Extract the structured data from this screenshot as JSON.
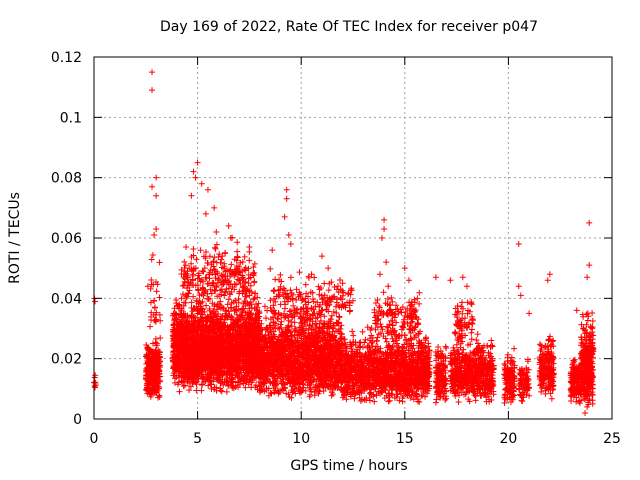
{
  "chart_data": {
    "type": "scatter",
    "title": "Day 169 of 2022, Rate Of TEC Index for receiver p047",
    "xlabel": "GPS time / hours",
    "ylabel": "ROTI / TECUs",
    "xlim": [
      0,
      25
    ],
    "ylim": [
      0,
      0.12
    ],
    "xticks": [
      0,
      5,
      10,
      15,
      20,
      25
    ],
    "yticks": [
      0,
      0.02,
      0.04,
      0.06,
      0.08,
      0.1,
      0.12
    ],
    "xtick_labels": [
      "0",
      "5",
      "10",
      "15",
      "20",
      "25"
    ],
    "ytick_labels": [
      "0",
      "0.02",
      "0.04",
      "0.06",
      "0.08",
      "0.1",
      "0.12"
    ],
    "grid": true,
    "marker": "+",
    "series_color": "#ff0000",
    "outliers": [
      {
        "x": 0.02,
        "y": 0.04
      },
      {
        "x": 0.05,
        "y": 0.039
      },
      {
        "x": 2.8,
        "y": 0.115
      },
      {
        "x": 2.8,
        "y": 0.109
      },
      {
        "x": 2.8,
        "y": 0.077
      },
      {
        "x": 3.0,
        "y": 0.08
      },
      {
        "x": 3.0,
        "y": 0.074
      },
      {
        "x": 3.0,
        "y": 0.063
      },
      {
        "x": 2.9,
        "y": 0.061
      },
      {
        "x": 2.6,
        "y": 0.044
      },
      {
        "x": 4.8,
        "y": 0.082
      },
      {
        "x": 5.0,
        "y": 0.085
      },
      {
        "x": 4.9,
        "y": 0.08
      },
      {
        "x": 5.2,
        "y": 0.078
      },
      {
        "x": 4.7,
        "y": 0.074
      },
      {
        "x": 5.5,
        "y": 0.076
      },
      {
        "x": 5.8,
        "y": 0.07
      },
      {
        "x": 5.4,
        "y": 0.068
      },
      {
        "x": 6.5,
        "y": 0.064
      },
      {
        "x": 5.9,
        "y": 0.062
      },
      {
        "x": 7.5,
        "y": 0.057
      },
      {
        "x": 6.6,
        "y": 0.06
      },
      {
        "x": 9.3,
        "y": 0.076
      },
      {
        "x": 9.3,
        "y": 0.073
      },
      {
        "x": 9.2,
        "y": 0.067
      },
      {
        "x": 9.4,
        "y": 0.061
      },
      {
        "x": 9.5,
        "y": 0.058
      },
      {
        "x": 8.6,
        "y": 0.056
      },
      {
        "x": 11.0,
        "y": 0.054
      },
      {
        "x": 11.3,
        "y": 0.05
      },
      {
        "x": 10.5,
        "y": 0.048
      },
      {
        "x": 12.0,
        "y": 0.045
      },
      {
        "x": 14.0,
        "y": 0.066
      },
      {
        "x": 14.0,
        "y": 0.063
      },
      {
        "x": 13.9,
        "y": 0.06
      },
      {
        "x": 14.1,
        "y": 0.052
      },
      {
        "x": 13.8,
        "y": 0.048
      },
      {
        "x": 14.2,
        "y": 0.044
      },
      {
        "x": 15.0,
        "y": 0.05
      },
      {
        "x": 15.2,
        "y": 0.046
      },
      {
        "x": 16.5,
        "y": 0.047
      },
      {
        "x": 17.2,
        "y": 0.046
      },
      {
        "x": 17.8,
        "y": 0.047
      },
      {
        "x": 18.0,
        "y": 0.044
      },
      {
        "x": 20.5,
        "y": 0.058
      },
      {
        "x": 20.5,
        "y": 0.044
      },
      {
        "x": 20.6,
        "y": 0.041
      },
      {
        "x": 22.0,
        "y": 0.048
      },
      {
        "x": 21.9,
        "y": 0.046
      },
      {
        "x": 23.9,
        "y": 0.065
      },
      {
        "x": 23.9,
        "y": 0.051
      },
      {
        "x": 23.8,
        "y": 0.047
      },
      {
        "x": 21.0,
        "y": 0.035
      },
      {
        "x": 23.3,
        "y": 0.036
      },
      {
        "x": 23.7,
        "y": 0.002
      },
      {
        "x": 23.8,
        "y": 0.004
      }
    ],
    "clusters": [
      {
        "x": [
          0.0,
          0.1
        ],
        "y": [
          0.007,
          0.018
        ],
        "n": 8
      },
      {
        "x": [
          2.5,
          3.2
        ],
        "y": [
          0.006,
          0.03
        ],
        "n": 320
      },
      {
        "x": [
          2.7,
          3.2
        ],
        "y": [
          0.025,
          0.06
        ],
        "n": 30
      },
      {
        "x": [
          3.8,
          8.0
        ],
        "y": [
          0.008,
          0.045
        ],
        "n": 2600
      },
      {
        "x": [
          4.2,
          7.8
        ],
        "y": [
          0.035,
          0.062
        ],
        "n": 260
      },
      {
        "x": [
          8.0,
          12.0
        ],
        "y": [
          0.006,
          0.04
        ],
        "n": 1700
      },
      {
        "x": [
          8.5,
          12.5
        ],
        "y": [
          0.03,
          0.052
        ],
        "n": 180
      },
      {
        "x": [
          12.0,
          16.2
        ],
        "y": [
          0.005,
          0.032
        ],
        "n": 1400
      },
      {
        "x": [
          13.5,
          15.8
        ],
        "y": [
          0.025,
          0.045
        ],
        "n": 150
      },
      {
        "x": [
          16.5,
          17.0
        ],
        "y": [
          0.004,
          0.028
        ],
        "n": 160
      },
      {
        "x": [
          17.2,
          19.3
        ],
        "y": [
          0.005,
          0.03
        ],
        "n": 600
      },
      {
        "x": [
          17.4,
          18.3
        ],
        "y": [
          0.025,
          0.042
        ],
        "n": 60
      },
      {
        "x": [
          19.8,
          20.3
        ],
        "y": [
          0.005,
          0.025
        ],
        "n": 150
      },
      {
        "x": [
          20.5,
          21.0
        ],
        "y": [
          0.005,
          0.022
        ],
        "n": 80
      },
      {
        "x": [
          21.5,
          22.2
        ],
        "y": [
          0.006,
          0.03
        ],
        "n": 200
      },
      {
        "x": [
          23.0,
          23.5
        ],
        "y": [
          0.004,
          0.025
        ],
        "n": 140
      },
      {
        "x": [
          23.5,
          24.1
        ],
        "y": [
          0.003,
          0.04
        ],
        "n": 320
      }
    ]
  }
}
